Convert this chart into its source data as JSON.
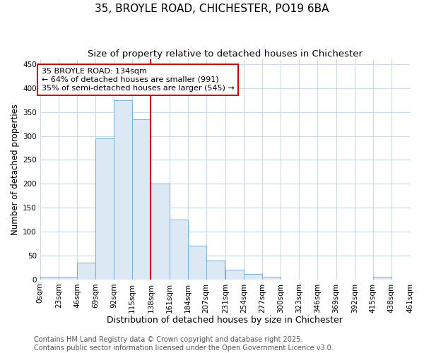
{
  "title1": "35, BROYLE ROAD, CHICHESTER, PO19 6BA",
  "title2": "Size of property relative to detached houses in Chichester",
  "xlabel": "Distribution of detached houses by size in Chichester",
  "ylabel": "Number of detached properties",
  "bin_labels": [
    "0sqm",
    "23sqm",
    "46sqm",
    "69sqm",
    "92sqm",
    "115sqm",
    "138sqm",
    "161sqm",
    "184sqm",
    "207sqm",
    "231sqm",
    "254sqm",
    "277sqm",
    "300sqm",
    "323sqm",
    "346sqm",
    "369sqm",
    "392sqm",
    "415sqm",
    "438sqm",
    "461sqm"
  ],
  "bin_edges": [
    0,
    23,
    46,
    69,
    92,
    115,
    138,
    161,
    184,
    207,
    231,
    254,
    277,
    300,
    323,
    346,
    369,
    392,
    415,
    438,
    461
  ],
  "bar_heights": [
    5,
    5,
    35,
    295,
    375,
    335,
    200,
    125,
    70,
    40,
    20,
    12,
    5,
    0,
    0,
    0,
    0,
    0,
    5,
    0
  ],
  "bar_color": "#dce9f5",
  "bar_edge_color": "#7ab0d8",
  "vline_x": 138,
  "vline_color": "#cc0000",
  "annotation_text": "35 BROYLE ROAD: 134sqm\n← 64% of detached houses are smaller (991)\n35% of semi-detached houses are larger (545) →",
  "annotation_box_color": "#ffffff",
  "annotation_box_edge_color": "#cc0000",
  "ylim": [
    0,
    460
  ],
  "yticks": [
    0,
    50,
    100,
    150,
    200,
    250,
    300,
    350,
    400,
    450
  ],
  "footer1": "Contains HM Land Registry data © Crown copyright and database right 2025.",
  "footer2": "Contains public sector information licensed under the Open Government Licence v3.0.",
  "bg_color": "#ffffff",
  "plot_bg_color": "#ffffff",
  "grid_color": "#c8d8ee",
  "title1_fontsize": 11,
  "title2_fontsize": 9.5,
  "xlabel_fontsize": 9,
  "ylabel_fontsize": 8.5,
  "tick_fontsize": 7.5,
  "annotation_fontsize": 8,
  "footer_fontsize": 7
}
